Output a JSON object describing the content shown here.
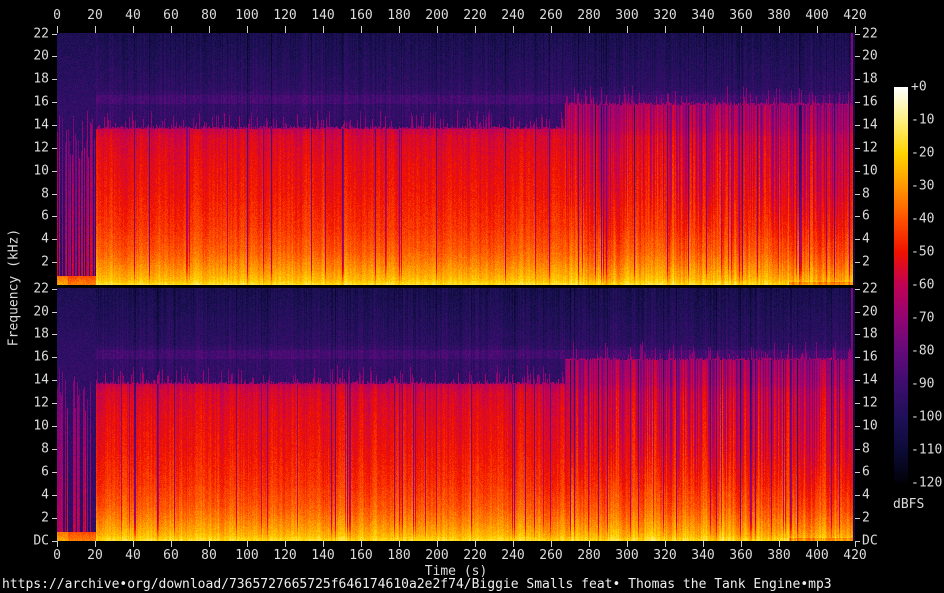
{
  "page": {
    "source_url": "https://archive•org/download/7365727665725f646174610a2e2f74/Biggie Smalls feat• Thomas the Tank Engine•mp3"
  },
  "axes": {
    "time_label": "Time (s)",
    "freq_label": "Frequency (kHz)",
    "time_ticks": [
      "0",
      "20",
      "40",
      "60",
      "80",
      "100",
      "120",
      "140",
      "160",
      "180",
      "200",
      "220",
      "240",
      "260",
      "280",
      "300",
      "320",
      "340",
      "360",
      "380",
      "400",
      "420"
    ],
    "freq_ticks": [
      "22",
      "20",
      "18",
      "16",
      "14",
      "12",
      "10",
      "8",
      "6",
      "4",
      "2"
    ],
    "dc_label": "DC"
  },
  "colorbar": {
    "unit": "dBFS",
    "tick_labels": [
      "+0",
      "-10",
      "-20",
      "-30",
      "-40",
      "-50",
      "-60",
      "-70",
      "-80",
      "-90",
      "-100",
      "-110",
      "-120"
    ]
  },
  "chart_data": {
    "type": "heatmap",
    "subtype": "audio-spectrogram",
    "channels": 2,
    "x": {
      "label": "Time (s)",
      "min": 0,
      "max": 420,
      "tick_step": 20
    },
    "y": {
      "label": "Frequency (kHz)",
      "min": 0,
      "max": 22.05,
      "tick_step": 2,
      "bottom_label": "DC"
    },
    "z": {
      "label": "dBFS",
      "min": -120,
      "max": 0,
      "tick_step": 10
    },
    "legend_position": "right",
    "palette_stops": [
      [
        -120,
        "#020108"
      ],
      [
        -110,
        "#0c0b38"
      ],
      [
        -100,
        "#1f1058"
      ],
      [
        -90,
        "#3c0d6e"
      ],
      [
        -80,
        "#640a7a"
      ],
      [
        -70,
        "#930473"
      ],
      [
        -60,
        "#c10254"
      ],
      [
        -50,
        "#f01200"
      ],
      [
        -40,
        "#ff5200"
      ],
      [
        -30,
        "#ff9800"
      ],
      [
        -20,
        "#ffd400"
      ],
      [
        -10,
        "#fff080"
      ],
      [
        0,
        "#ffffff"
      ]
    ],
    "segments": [
      {
        "name": "intro",
        "t_start": 0,
        "t_end": 20.5,
        "lowpass_cutoff_khz": 15.2,
        "character": "sparse vertical transients over quiet floor, bass band only moderately bright"
      },
      {
        "name": "main",
        "t_start": 20.5,
        "t_end": 267,
        "lowpass_cutoff_khz": 13.7,
        "character": "dense program material, transient spikes reaching ~15.3 kHz"
      },
      {
        "name": "high-bitrate",
        "t_start": 267,
        "t_end": 418.5,
        "lowpass_cutoff_khz": 15.8,
        "character": "cutoff raised to ~15.8 kHz, stronger vertical red/purple striping"
      }
    ],
    "features": {
      "bass_band_db": -15,
      "body_level_db_mid": -52,
      "noise_floor_db": -97,
      "bright_artifact_band_khz": [
        15.9,
        16.7
      ],
      "bright_artifact_band_db": -88,
      "outro_fade_t": 385,
      "end_transient_t": 417.4,
      "silence_after_t": 418.6
    },
    "level_profile_db": [
      [
        0,
        -15
      ],
      [
        0.15,
        -18
      ],
      [
        0.5,
        -24
      ],
      [
        1,
        -28
      ],
      [
        2,
        -34
      ],
      [
        3,
        -39
      ],
      [
        5,
        -45
      ],
      [
        8,
        -50
      ],
      [
        11,
        -53
      ],
      [
        13,
        -56
      ],
      [
        13.7,
        -60
      ],
      [
        15.8,
        -64
      ]
    ]
  }
}
